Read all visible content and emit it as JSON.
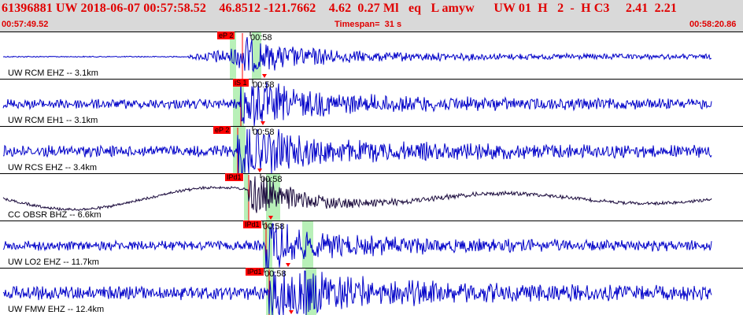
{
  "header": {
    "summary": "61396881 UW 2018-06-07 00:57:58.52    46.8512 -121.7662    4.62  0.27 Ml   eq   L amyw      UW 01  H   2  -  H C3     2.41  2.21",
    "start_time": "00:57:49.52",
    "timespan": "Timespan=  31 s",
    "end_time": "00:58:20.86"
  },
  "traces": [
    {
      "label": "UW RCM EHZ -- 3.1km",
      "time_tick": "00:58",
      "pick": "eP 2",
      "color": "#0000c8"
    },
    {
      "label": "UW RCM EH1 -- 3.1km",
      "time_tick": "00:58",
      "pick": "iS 1",
      "color": "#0000c8"
    },
    {
      "label": "UW RCS EHZ -- 3.4km",
      "time_tick": "00:58",
      "pick": "eP 2",
      "color": "#0000c8"
    },
    {
      "label": "CC OBSR BHZ -- 6.6km",
      "time_tick": "00:58",
      "pick": "IPd1",
      "color": "#1a0a3c"
    },
    {
      "label": "UW LO2 EHZ -- 11.7km",
      "time_tick": "00:58",
      "pick": "IPd1",
      "color": "#0000c8"
    },
    {
      "label": "UW FMW EHZ -- 12.4km",
      "time_tick": "00:58",
      "pick": "IPd1",
      "color": "#0000c8"
    }
  ],
  "colors": {
    "header_bg": "#d9d9d9",
    "header_text": "#e00000",
    "pick_flag": "#ff0000",
    "window_shade": "#b8f0b8",
    "trace_blue": "#0000c8"
  }
}
